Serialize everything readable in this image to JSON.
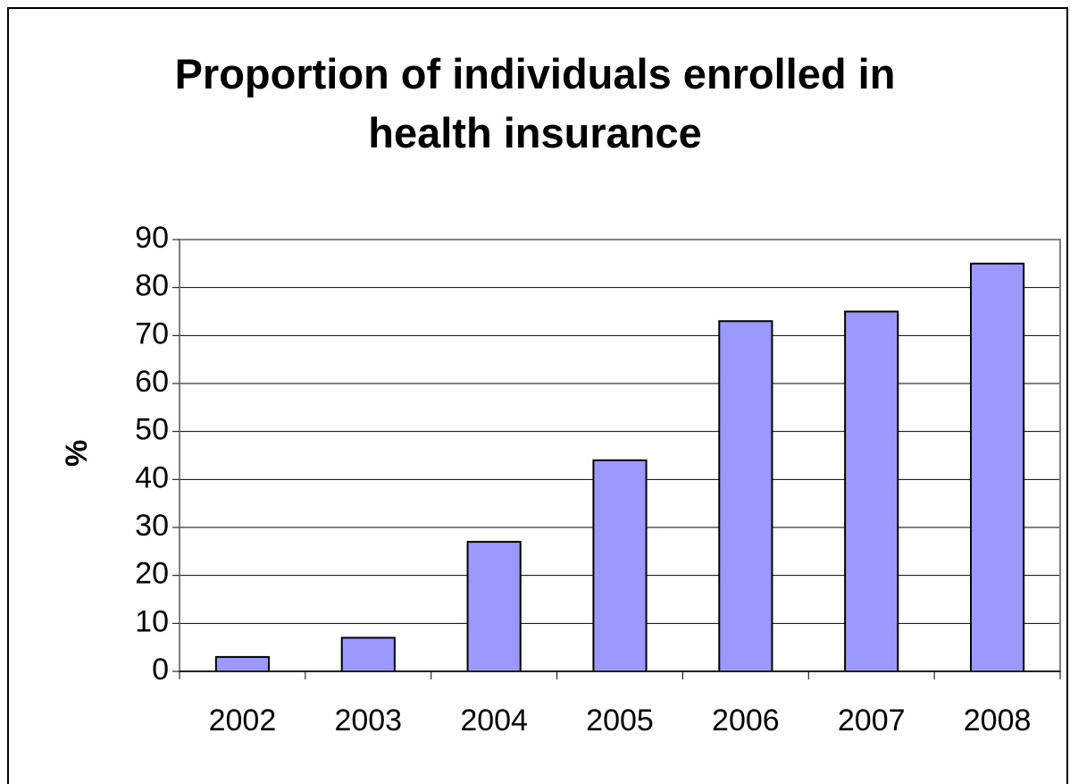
{
  "chart_data": {
    "type": "bar",
    "title_lines": [
      "Proportion of individuals enrolled in",
      "health insurance"
    ],
    "ylabel": "%",
    "xlabel": "",
    "categories": [
      "2002",
      "2003",
      "2004",
      "2005",
      "2006",
      "2007",
      "2008"
    ],
    "values": [
      3,
      7,
      27,
      44,
      73,
      75,
      85
    ],
    "ylim": [
      0,
      90
    ],
    "yticks": [
      "0",
      "10",
      "20",
      "30",
      "40",
      "50",
      "60",
      "70",
      "80",
      "90"
    ],
    "grid": true,
    "legend": "none",
    "colors": {
      "bar_fill": "#9999ff",
      "bar_stroke": "#000000",
      "grid": "#000000",
      "axis": "#808080"
    }
  }
}
